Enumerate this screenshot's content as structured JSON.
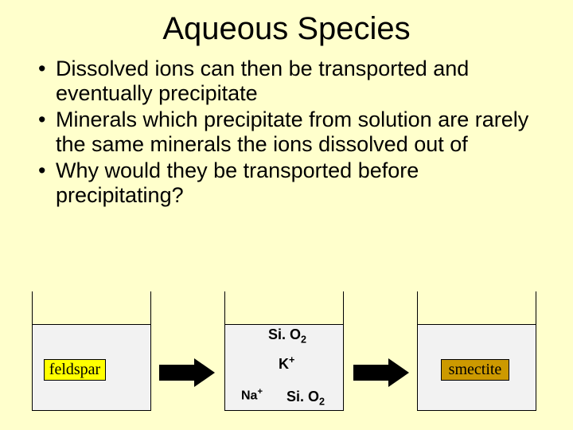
{
  "title": "Aqueous Species",
  "bullets": [
    "Dissolved ions can then be transported and eventually precipitate",
    "Minerals which precipitate from solution are rarely the same minerals the ions dissolved out of",
    "Why would they be transported before precipitating?"
  ],
  "diagram": {
    "feldspar_label": "feldspar",
    "smectite_label": "smectite",
    "ions": {
      "sio2_top": "Si. O",
      "sio2_top_sub": "2",
      "kplus": "K",
      "kplus_sup": "+",
      "naplus": "Na",
      "naplus_sup": "+",
      "sio2_bot": "Si. O",
      "sio2_bot_sub": "2"
    }
  },
  "colors": {
    "background": "#ffffcc",
    "water": "#f2f2f2",
    "feldspar_bg": "#FFFF00",
    "smectite_bg": "#CC9900",
    "arrow": "#000000",
    "text": "#000000"
  }
}
